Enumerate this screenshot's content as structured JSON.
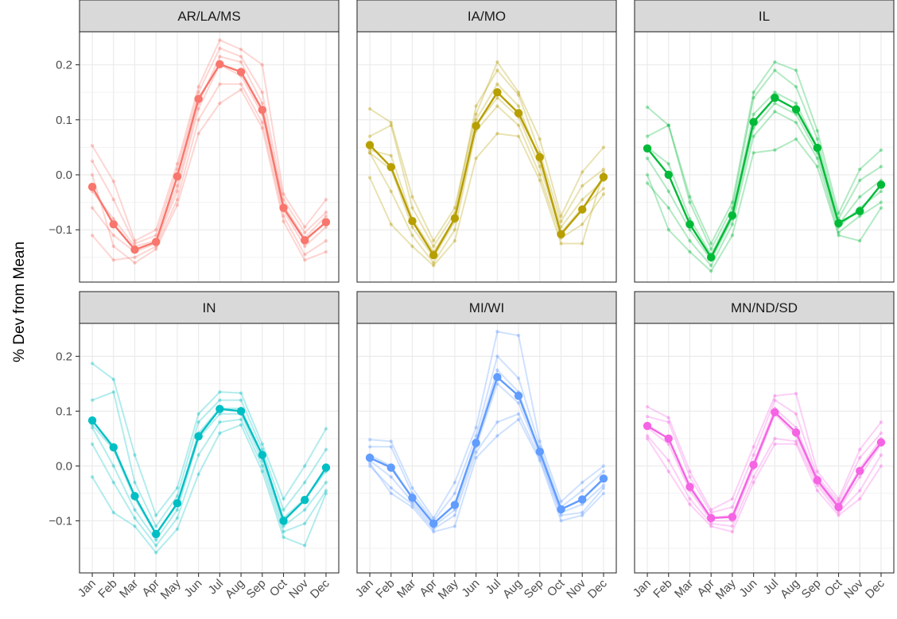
{
  "chart_data": {
    "type": "line",
    "ylabel": "% Dev from Mean",
    "xlabel": "",
    "months": [
      "Jan",
      "Feb",
      "Mar",
      "Apr",
      "May",
      "Jun",
      "Jul",
      "Aug",
      "Sep",
      "Oct",
      "Nov",
      "Dec"
    ],
    "yticks": [
      -0.1,
      0.0,
      0.1,
      0.2
    ],
    "ytick_labels": [
      "−0.1",
      "0.0",
      "0.1",
      "0.2"
    ],
    "ylim": [
      -0.195,
      0.26
    ],
    "grid": true,
    "legend": "none",
    "facets": [
      {
        "label": "AR/LA/MS",
        "color": "#F8766D",
        "mean": [
          -0.022,
          -0.09,
          -0.136,
          -0.122,
          -0.003,
          0.138,
          0.201,
          0.187,
          0.118,
          -0.06,
          -0.119,
          -0.086
        ],
        "years": [
          [
            0.053,
            -0.012,
            -0.12,
            -0.1,
            0.02,
            0.16,
            0.245,
            0.228,
            0.2,
            -0.035,
            -0.095,
            -0.045
          ],
          [
            0.025,
            -0.045,
            -0.125,
            -0.11,
            0.01,
            0.15,
            0.23,
            0.215,
            0.15,
            -0.045,
            -0.105,
            -0.068
          ],
          [
            -0.03,
            -0.08,
            -0.13,
            -0.12,
            -0.02,
            0.13,
            0.215,
            0.205,
            0.13,
            -0.055,
            -0.115,
            -0.075
          ],
          [
            -0.06,
            -0.11,
            -0.14,
            -0.125,
            -0.03,
            0.12,
            0.2,
            0.18,
            0.11,
            -0.065,
            -0.13,
            -0.095
          ],
          [
            -0.11,
            -0.155,
            -0.15,
            -0.13,
            -0.045,
            0.1,
            0.165,
            0.165,
            0.095,
            -0.075,
            -0.145,
            -0.12
          ],
          [
            0.0,
            -0.13,
            -0.16,
            -0.135,
            -0.055,
            0.075,
            0.13,
            0.155,
            0.085,
            -0.085,
            -0.155,
            -0.14
          ]
        ]
      },
      {
        "label": "IA/MO",
        "color": "#B79F00",
        "mean": [
          0.054,
          0.014,
          -0.084,
          -0.146,
          -0.079,
          0.089,
          0.15,
          0.112,
          0.032,
          -0.108,
          -0.063,
          -0.004
        ],
        "years": [
          [
            0.12,
            0.095,
            -0.04,
            -0.12,
            -0.06,
            0.11,
            0.205,
            0.15,
            0.065,
            -0.075,
            0.005,
            0.05
          ],
          [
            0.07,
            0.09,
            -0.06,
            -0.13,
            -0.07,
            0.125,
            0.19,
            0.145,
            0.04,
            -0.085,
            -0.02,
            0.01
          ],
          [
            0.045,
            0.035,
            -0.08,
            -0.14,
            -0.08,
            0.1,
            0.165,
            0.125,
            0.025,
            -0.095,
            -0.045,
            -0.01
          ],
          [
            0.04,
            0.01,
            -0.095,
            -0.15,
            -0.085,
            0.09,
            0.14,
            0.105,
            0.015,
            -0.105,
            -0.06,
            -0.025
          ],
          [
            0.04,
            -0.03,
            -0.11,
            -0.16,
            -0.1,
            0.08,
            0.125,
            0.09,
            0.0,
            -0.115,
            -0.09,
            -0.035
          ],
          [
            -0.005,
            -0.09,
            -0.13,
            -0.165,
            -0.12,
            0.03,
            0.075,
            0.07,
            -0.01,
            -0.125,
            -0.125,
            0.005
          ]
        ]
      },
      {
        "label": "IL",
        "color": "#00BA38",
        "mean": [
          0.048,
          0.0,
          -0.09,
          -0.15,
          -0.074,
          0.096,
          0.14,
          0.119,
          0.049,
          -0.088,
          -0.066,
          -0.018
        ],
        "years": [
          [
            0.123,
            0.09,
            -0.04,
            -0.125,
            -0.05,
            0.15,
            0.205,
            0.19,
            0.08,
            -0.07,
            0.01,
            0.045
          ],
          [
            0.07,
            0.09,
            -0.05,
            -0.135,
            -0.06,
            0.14,
            0.19,
            0.16,
            0.065,
            -0.08,
            -0.01,
            0.015
          ],
          [
            0.05,
            0.02,
            -0.08,
            -0.145,
            -0.07,
            0.11,
            0.15,
            0.13,
            0.05,
            -0.09,
            -0.04,
            -0.01
          ],
          [
            0.03,
            -0.03,
            -0.1,
            -0.155,
            -0.08,
            0.085,
            0.13,
            0.11,
            0.04,
            -0.095,
            -0.06,
            -0.03
          ],
          [
            -0.015,
            -0.06,
            -0.12,
            -0.165,
            -0.09,
            0.07,
            0.115,
            0.095,
            0.03,
            -0.105,
            -0.075,
            -0.05
          ],
          [
            0.0,
            -0.1,
            -0.14,
            -0.175,
            -0.11,
            0.04,
            0.045,
            0.065,
            0.015,
            -0.11,
            -0.12,
            -0.06
          ]
        ]
      },
      {
        "label": "IN",
        "color": "#00BFC4",
        "mean": [
          0.083,
          0.034,
          -0.055,
          -0.124,
          -0.068,
          0.054,
          0.104,
          0.1,
          0.02,
          -0.1,
          -0.062,
          -0.003
        ],
        "years": [
          [
            0.187,
            0.158,
            0.02,
            -0.09,
            -0.04,
            0.095,
            0.135,
            0.133,
            0.04,
            -0.06,
            0.0,
            0.068
          ],
          [
            0.12,
            0.135,
            -0.03,
            -0.11,
            -0.055,
            0.08,
            0.12,
            0.12,
            0.03,
            -0.08,
            -0.03,
            0.03
          ],
          [
            0.075,
            0.03,
            -0.06,
            -0.125,
            -0.07,
            0.06,
            0.105,
            0.105,
            0.02,
            -0.095,
            -0.06,
            -0.01
          ],
          [
            0.07,
            0.0,
            -0.08,
            -0.135,
            -0.08,
            0.05,
            0.095,
            0.095,
            0.01,
            -0.11,
            -0.08,
            -0.03
          ],
          [
            0.04,
            -0.03,
            -0.095,
            -0.145,
            -0.095,
            0.02,
            0.08,
            0.085,
            0.0,
            -0.12,
            -0.105,
            -0.045
          ],
          [
            -0.02,
            -0.085,
            -0.11,
            -0.158,
            -0.115,
            -0.015,
            0.06,
            0.075,
            -0.01,
            -0.13,
            -0.145,
            -0.05
          ]
        ]
      },
      {
        "label": "MI/WI",
        "color": "#619CFF",
        "mean": [
          0.015,
          -0.003,
          -0.058,
          -0.105,
          -0.071,
          0.042,
          0.162,
          0.128,
          0.026,
          -0.079,
          -0.061,
          -0.023
        ],
        "years": [
          [
            0.048,
            0.045,
            -0.04,
            -0.095,
            -0.03,
            0.07,
            0.245,
            0.238,
            0.045,
            -0.065,
            -0.03,
            0.0
          ],
          [
            0.035,
            0.035,
            -0.05,
            -0.1,
            -0.05,
            0.055,
            0.2,
            0.16,
            0.035,
            -0.075,
            -0.045,
            -0.01
          ],
          [
            0.02,
            0.0,
            -0.06,
            -0.105,
            -0.07,
            0.045,
            0.175,
            0.135,
            0.025,
            -0.08,
            -0.06,
            -0.025
          ],
          [
            0.01,
            -0.02,
            -0.065,
            -0.11,
            -0.08,
            0.035,
            0.15,
            0.115,
            0.02,
            -0.085,
            -0.07,
            -0.035
          ],
          [
            0.0,
            -0.04,
            -0.07,
            -0.115,
            -0.09,
            0.025,
            0.08,
            0.095,
            0.015,
            -0.09,
            -0.085,
            -0.04
          ],
          [
            0.005,
            -0.05,
            -0.075,
            -0.12,
            -0.11,
            0.015,
            0.055,
            0.085,
            0.01,
            -0.1,
            -0.09,
            -0.05
          ]
        ]
      },
      {
        "label": "MN/ND/SD",
        "color": "#F564E3",
        "mean": [
          0.073,
          0.05,
          -0.038,
          -0.095,
          -0.093,
          0.002,
          0.098,
          0.061,
          -0.026,
          -0.075,
          -0.009,
          0.043
        ],
        "years": [
          [
            0.108,
            0.088,
            -0.01,
            -0.08,
            -0.06,
            0.035,
            0.128,
            0.132,
            -0.01,
            -0.06,
            0.03,
            0.08
          ],
          [
            0.09,
            0.08,
            -0.02,
            -0.085,
            -0.075,
            0.02,
            0.12,
            0.095,
            -0.02,
            -0.065,
            0.015,
            0.06
          ],
          [
            0.075,
            0.05,
            -0.035,
            -0.095,
            -0.09,
            0.005,
            0.105,
            0.07,
            -0.025,
            -0.07,
            -0.005,
            0.05
          ],
          [
            0.07,
            0.04,
            -0.045,
            -0.1,
            -0.1,
            -0.005,
            0.095,
            0.055,
            -0.03,
            -0.08,
            -0.02,
            0.04
          ],
          [
            0.055,
            0.01,
            -0.06,
            -0.105,
            -0.11,
            -0.02,
            0.05,
            0.045,
            -0.035,
            -0.085,
            -0.045,
            0.02
          ],
          [
            0.05,
            -0.01,
            -0.07,
            -0.11,
            -0.12,
            -0.03,
            0.04,
            0.04,
            -0.045,
            -0.09,
            -0.06,
            0.0
          ]
        ]
      }
    ]
  }
}
